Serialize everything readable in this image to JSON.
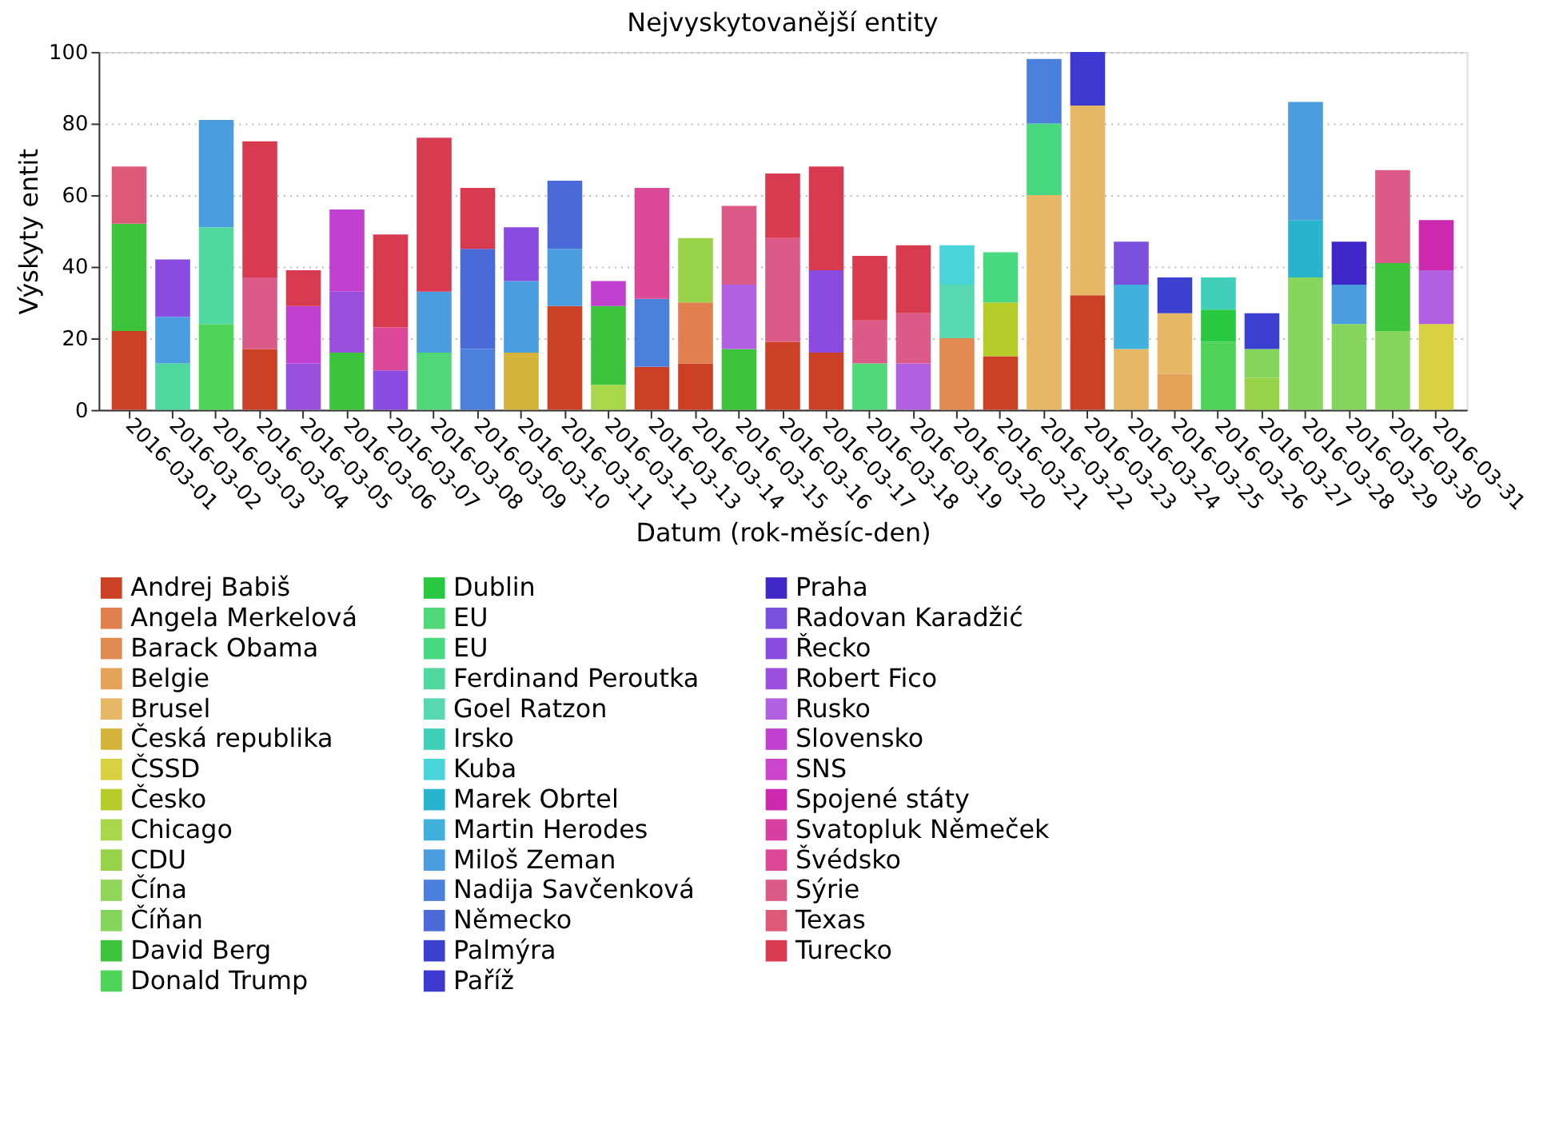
{
  "chart_data": {
    "type": "bar",
    "stacked": true,
    "title": "Nejvyskytovanější entity",
    "xlabel": "Datum (rok-měsíc-den)",
    "ylabel": "Výskyty entit",
    "categories": [
      "2016-03-01",
      "2016-03-02",
      "2016-03-03",
      "2016-03-04",
      "2016-03-05",
      "2016-03-06",
      "2016-03-07",
      "2016-03-08",
      "2016-03-09",
      "2016-03-10",
      "2016-03-11",
      "2016-03-12",
      "2016-03-13",
      "2016-03-14",
      "2016-03-15",
      "2016-03-16",
      "2016-03-17",
      "2016-03-18",
      "2016-03-19",
      "2016-03-20",
      "2016-03-21",
      "2016-03-22",
      "2016-03-23",
      "2016-03-24",
      "2016-03-25",
      "2016-03-26",
      "2016-03-27",
      "2016-03-28",
      "2016-03-29",
      "2016-03-30",
      "2016-03-31"
    ],
    "ylim": [
      0,
      100
    ],
    "yticks": [
      0,
      20,
      40,
      60,
      80,
      100
    ],
    "grid": "y",
    "legend": "bottom",
    "series": [
      {
        "name": "Andrej Babiš",
        "color": "#cc4125",
        "values": [
          22,
          null,
          null,
          17,
          null,
          null,
          null,
          null,
          null,
          null,
          29,
          null,
          12,
          13,
          null,
          19,
          16,
          null,
          null,
          null,
          15,
          null,
          32,
          null,
          null,
          null,
          null,
          null,
          null,
          null,
          null
        ]
      },
      {
        "name": "Angela Merkelová",
        "color": "#e0804f",
        "values": [
          null,
          null,
          null,
          null,
          null,
          null,
          null,
          null,
          null,
          null,
          null,
          null,
          null,
          17,
          null,
          null,
          null,
          null,
          null,
          null,
          null,
          null,
          null,
          null,
          null,
          null,
          null,
          null,
          null,
          null,
          null
        ]
      },
      {
        "name": "Barack Obama",
        "color": "#e08a4f",
        "values": [
          null,
          null,
          null,
          null,
          null,
          null,
          null,
          null,
          null,
          null,
          null,
          null,
          null,
          null,
          null,
          null,
          null,
          null,
          null,
          20,
          null,
          null,
          null,
          null,
          null,
          null,
          null,
          null,
          null,
          null,
          null
        ]
      },
      {
        "name": "Belgie",
        "color": "#e5a35a",
        "values": [
          null,
          null,
          null,
          null,
          null,
          null,
          null,
          null,
          null,
          null,
          null,
          null,
          null,
          null,
          null,
          null,
          null,
          null,
          null,
          null,
          null,
          null,
          null,
          null,
          10,
          null,
          null,
          null,
          null,
          null,
          null
        ]
      },
      {
        "name": "Brusel",
        "color": "#e6b866",
        "values": [
          null,
          null,
          null,
          null,
          null,
          null,
          null,
          null,
          null,
          null,
          null,
          null,
          null,
          null,
          null,
          null,
          null,
          null,
          null,
          null,
          null,
          60,
          53,
          17,
          17,
          null,
          null,
          null,
          null,
          null,
          null
        ]
      },
      {
        "name": "Česká republika",
        "color": "#d4b43a",
        "values": [
          null,
          null,
          null,
          null,
          null,
          null,
          null,
          null,
          null,
          16,
          null,
          null,
          null,
          null,
          null,
          null,
          null,
          null,
          null,
          null,
          null,
          null,
          null,
          null,
          null,
          null,
          null,
          null,
          null,
          null,
          null
        ]
      },
      {
        "name": "ČSSD",
        "color": "#d8d040",
        "values": [
          null,
          null,
          null,
          null,
          null,
          null,
          null,
          null,
          null,
          null,
          null,
          null,
          null,
          null,
          null,
          null,
          null,
          null,
          null,
          null,
          null,
          null,
          null,
          null,
          null,
          null,
          null,
          null,
          null,
          null,
          24
        ]
      },
      {
        "name": "Česko",
        "color": "#b5cc2a",
        "values": [
          null,
          null,
          null,
          null,
          null,
          null,
          null,
          null,
          null,
          null,
          null,
          null,
          null,
          null,
          null,
          null,
          null,
          null,
          null,
          null,
          15,
          null,
          null,
          null,
          null,
          null,
          null,
          null,
          null,
          null,
          null
        ]
      },
      {
        "name": "Chicago",
        "color": "#a8d84a",
        "values": [
          null,
          null,
          null,
          null,
          null,
          null,
          null,
          null,
          null,
          null,
          null,
          7,
          null,
          null,
          null,
          null,
          null,
          null,
          null,
          null,
          null,
          null,
          null,
          null,
          null,
          null,
          null,
          null,
          null,
          null,
          null
        ]
      },
      {
        "name": "CDU",
        "color": "#98d248",
        "values": [
          null,
          null,
          null,
          null,
          null,
          null,
          null,
          null,
          null,
          null,
          null,
          null,
          null,
          18,
          null,
          null,
          null,
          null,
          null,
          null,
          null,
          null,
          null,
          null,
          null,
          null,
          9,
          null,
          null,
          null,
          null
        ]
      },
      {
        "name": "Čína",
        "color": "#8fd65a",
        "values": [
          null,
          null,
          null,
          null,
          null,
          null,
          null,
          null,
          null,
          null,
          null,
          null,
          null,
          null,
          null,
          null,
          null,
          null,
          null,
          null,
          null,
          null,
          null,
          null,
          null,
          null,
          null,
          null,
          null,
          null,
          null
        ]
      },
      {
        "name": "Číňan",
        "color": "#86d65e",
        "values": [
          null,
          null,
          null,
          null,
          null,
          null,
          null,
          null,
          null,
          null,
          null,
          null,
          null,
          null,
          null,
          null,
          null,
          null,
          null,
          null,
          null,
          null,
          null,
          null,
          null,
          null,
          8,
          37,
          24,
          22,
          null
        ]
      },
      {
        "name": "David Berg",
        "color": "#3cc43c",
        "values": [
          30,
          null,
          null,
          null,
          null,
          16,
          null,
          null,
          null,
          null,
          null,
          22,
          null,
          null,
          17,
          null,
          null,
          null,
          null,
          null,
          null,
          null,
          null,
          null,
          null,
          null,
          null,
          null,
          null,
          19,
          null
        ]
      },
      {
        "name": "Donald Trump",
        "color": "#4ed458",
        "values": [
          null,
          null,
          24,
          null,
          null,
          null,
          null,
          null,
          null,
          null,
          null,
          null,
          null,
          null,
          null,
          null,
          null,
          null,
          null,
          null,
          null,
          null,
          null,
          null,
          null,
          19,
          null,
          null,
          null,
          null,
          null
        ]
      },
      {
        "name": "Dublin",
        "color": "#28c840",
        "values": [
          null,
          null,
          null,
          null,
          null,
          null,
          null,
          null,
          null,
          null,
          null,
          null,
          null,
          null,
          null,
          null,
          null,
          null,
          null,
          null,
          null,
          null,
          null,
          null,
          null,
          9,
          null,
          null,
          null,
          null,
          null
        ]
      },
      {
        "name": "EU",
        "color": "#50d878",
        "values": [
          null,
          null,
          null,
          null,
          null,
          null,
          null,
          16,
          null,
          null,
          null,
          null,
          null,
          null,
          null,
          null,
          null,
          13,
          null,
          null,
          null,
          null,
          null,
          null,
          null,
          null,
          null,
          null,
          null,
          null,
          null
        ]
      },
      {
        "name": "EU",
        "color": "#48d880",
        "values": [
          null,
          null,
          null,
          null,
          null,
          null,
          null,
          null,
          null,
          null,
          null,
          null,
          null,
          null,
          null,
          null,
          null,
          null,
          null,
          null,
          14,
          20,
          null,
          null,
          null,
          null,
          null,
          null,
          null,
          null,
          null
        ]
      },
      {
        "name": "Ferdinand Peroutka",
        "color": "#50d8a0",
        "values": [
          null,
          13,
          27,
          null,
          null,
          null,
          null,
          null,
          null,
          null,
          null,
          null,
          null,
          null,
          null,
          null,
          null,
          null,
          null,
          null,
          null,
          null,
          null,
          null,
          null,
          null,
          null,
          null,
          null,
          null,
          null
        ]
      },
      {
        "name": "Goel Ratzon",
        "color": "#58d8b0",
        "values": [
          null,
          null,
          null,
          null,
          null,
          null,
          null,
          null,
          null,
          null,
          null,
          null,
          null,
          null,
          null,
          null,
          null,
          null,
          null,
          15,
          null,
          null,
          null,
          null,
          null,
          null,
          null,
          null,
          null,
          null,
          null
        ]
      },
      {
        "name": "Irsko",
        "color": "#40cfb8",
        "values": [
          null,
          null,
          null,
          null,
          null,
          null,
          null,
          null,
          null,
          null,
          null,
          null,
          null,
          null,
          null,
          null,
          null,
          null,
          null,
          null,
          null,
          null,
          null,
          null,
          null,
          9,
          null,
          null,
          null,
          null,
          null
        ]
      },
      {
        "name": "Kuba",
        "color": "#48d4d8",
        "values": [
          null,
          null,
          null,
          null,
          null,
          null,
          null,
          null,
          null,
          null,
          null,
          null,
          null,
          null,
          null,
          null,
          null,
          null,
          null,
          11,
          null,
          null,
          null,
          null,
          null,
          null,
          null,
          null,
          null,
          null,
          null
        ]
      },
      {
        "name": "Marek Obrtel",
        "color": "#28b4cc",
        "values": [
          null,
          null,
          null,
          null,
          null,
          null,
          null,
          null,
          null,
          null,
          null,
          null,
          null,
          null,
          null,
          null,
          null,
          null,
          null,
          null,
          null,
          null,
          null,
          null,
          null,
          null,
          null,
          16,
          null,
          null,
          null
        ]
      },
      {
        "name": "Martin Herodes",
        "color": "#40b0dc",
        "values": [
          null,
          null,
          null,
          null,
          null,
          null,
          null,
          null,
          null,
          null,
          null,
          null,
          null,
          null,
          null,
          null,
          null,
          null,
          null,
          null,
          null,
          null,
          null,
          18,
          null,
          null,
          null,
          null,
          null,
          null,
          null
        ]
      },
      {
        "name": "Miloš Zeman",
        "color": "#4a9ee0",
        "values": [
          null,
          13,
          30,
          null,
          null,
          null,
          null,
          17,
          null,
          20,
          16,
          null,
          null,
          null,
          null,
          null,
          null,
          null,
          null,
          null,
          null,
          null,
          null,
          null,
          null,
          null,
          null,
          33,
          11,
          null,
          null
        ]
      },
      {
        "name": "Nadija Savčenková",
        "color": "#4a80dc",
        "values": [
          null,
          null,
          null,
          null,
          null,
          null,
          null,
          null,
          17,
          null,
          null,
          null,
          19,
          null,
          null,
          null,
          null,
          null,
          null,
          null,
          null,
          18,
          null,
          null,
          null,
          null,
          null,
          null,
          null,
          null,
          null
        ]
      },
      {
        "name": "Německo",
        "color": "#4a6ad8",
        "values": [
          null,
          null,
          null,
          null,
          null,
          null,
          null,
          null,
          28,
          null,
          19,
          null,
          null,
          null,
          null,
          null,
          null,
          null,
          null,
          null,
          null,
          null,
          null,
          null,
          null,
          null,
          null,
          null,
          null,
          null,
          null
        ]
      },
      {
        "name": "Palmýra",
        "color": "#3c40d0",
        "values": [
          null,
          null,
          null,
          null,
          null,
          null,
          null,
          null,
          null,
          null,
          null,
          null,
          null,
          null,
          null,
          null,
          null,
          null,
          null,
          null,
          null,
          null,
          null,
          null,
          10,
          null,
          10,
          null,
          null,
          null,
          null
        ]
      },
      {
        "name": "Paříž",
        "color": "#3c38d0",
        "values": [
          null,
          null,
          null,
          null,
          null,
          null,
          null,
          null,
          null,
          null,
          null,
          null,
          null,
          null,
          null,
          null,
          null,
          null,
          null,
          null,
          null,
          null,
          15,
          null,
          null,
          null,
          null,
          null,
          null,
          null,
          null
        ]
      },
      {
        "name": "Praha",
        "color": "#4028c8",
        "values": [
          null,
          null,
          null,
          null,
          null,
          null,
          null,
          null,
          null,
          null,
          null,
          null,
          null,
          null,
          null,
          null,
          null,
          null,
          null,
          null,
          null,
          null,
          null,
          null,
          null,
          null,
          null,
          null,
          12,
          null,
          null
        ]
      },
      {
        "name": "Radovan Karadžić",
        "color": "#7a50dc",
        "values": [
          null,
          null,
          null,
          null,
          null,
          null,
          null,
          null,
          null,
          null,
          null,
          null,
          null,
          null,
          null,
          null,
          null,
          null,
          null,
          null,
          null,
          null,
          null,
          12,
          null,
          null,
          null,
          null,
          null,
          null,
          null
        ]
      },
      {
        "name": "Řecko",
        "color": "#8a4ce0",
        "values": [
          null,
          16,
          null,
          null,
          null,
          null,
          11,
          null,
          null,
          15,
          null,
          null,
          null,
          null,
          null,
          null,
          23,
          null,
          null,
          null,
          null,
          null,
          null,
          null,
          null,
          null,
          null,
          null,
          null,
          null,
          null
        ]
      },
      {
        "name": "Robert Fico",
        "color": "#9a50dc",
        "values": [
          null,
          null,
          null,
          null,
          13,
          17,
          null,
          null,
          null,
          null,
          null,
          null,
          null,
          null,
          null,
          null,
          null,
          null,
          null,
          null,
          null,
          null,
          null,
          null,
          null,
          null,
          null,
          null,
          null,
          null,
          null
        ]
      },
      {
        "name": "Rusko",
        "color": "#b060e0",
        "values": [
          null,
          null,
          null,
          null,
          null,
          null,
          null,
          null,
          null,
          null,
          null,
          null,
          null,
          null,
          18,
          null,
          null,
          null,
          13,
          null,
          null,
          null,
          null,
          null,
          null,
          null,
          null,
          null,
          null,
          null,
          15
        ]
      },
      {
        "name": "Slovensko",
        "color": "#c040d0",
        "values": [
          null,
          null,
          null,
          null,
          16,
          23,
          null,
          null,
          null,
          null,
          null,
          7,
          null,
          null,
          null,
          null,
          null,
          null,
          null,
          null,
          null,
          null,
          null,
          null,
          null,
          null,
          null,
          null,
          null,
          null,
          null
        ]
      },
      {
        "name": "SNS",
        "color": "#cc44cc",
        "values": [
          null,
          null,
          null,
          null,
          null,
          null,
          null,
          null,
          null,
          null,
          null,
          null,
          null,
          null,
          null,
          null,
          null,
          null,
          null,
          null,
          null,
          null,
          null,
          null,
          null,
          null,
          null,
          null,
          null,
          null,
          null
        ]
      },
      {
        "name": "Spojené státy",
        "color": "#cc28b0",
        "values": [
          null,
          null,
          null,
          null,
          null,
          null,
          null,
          null,
          null,
          null,
          null,
          null,
          null,
          null,
          null,
          null,
          null,
          null,
          null,
          null,
          null,
          null,
          null,
          null,
          null,
          null,
          null,
          null,
          null,
          null,
          14
        ]
      },
      {
        "name": "Svatopluk Němeček",
        "color": "#d840a0",
        "values": [
          null,
          null,
          null,
          null,
          null,
          null,
          null,
          null,
          null,
          null,
          null,
          null,
          null,
          null,
          null,
          null,
          null,
          null,
          null,
          null,
          null,
          null,
          null,
          null,
          null,
          null,
          null,
          null,
          null,
          null,
          null
        ]
      },
      {
        "name": "Švédsko",
        "color": "#dc4898",
        "values": [
          null,
          null,
          null,
          null,
          null,
          null,
          12,
          null,
          null,
          null,
          null,
          null,
          31,
          null,
          null,
          null,
          null,
          null,
          null,
          null,
          null,
          null,
          null,
          null,
          null,
          null,
          null,
          null,
          null,
          null,
          null
        ]
      },
      {
        "name": "Sýrie",
        "color": "#dc5a88",
        "values": [
          null,
          null,
          null,
          20,
          null,
          null,
          null,
          null,
          null,
          null,
          null,
          null,
          null,
          null,
          22,
          29,
          null,
          12,
          14,
          null,
          null,
          null,
          null,
          null,
          null,
          null,
          null,
          null,
          null,
          26,
          null
        ]
      },
      {
        "name": "Texas",
        "color": "#dc5a78",
        "values": [
          16,
          null,
          null,
          null,
          null,
          null,
          null,
          null,
          null,
          null,
          null,
          null,
          null,
          null,
          null,
          null,
          null,
          null,
          null,
          null,
          null,
          null,
          null,
          null,
          null,
          null,
          null,
          null,
          null,
          null,
          null
        ]
      },
      {
        "name": "Turecko",
        "color": "#d83a50",
        "values": [
          null,
          null,
          null,
          38,
          10,
          null,
          26,
          43,
          17,
          null,
          null,
          null,
          null,
          null,
          null,
          18,
          29,
          18,
          19,
          null,
          null,
          null,
          null,
          null,
          null,
          null,
          null,
          null,
          null,
          null,
          null
        ]
      }
    ]
  }
}
